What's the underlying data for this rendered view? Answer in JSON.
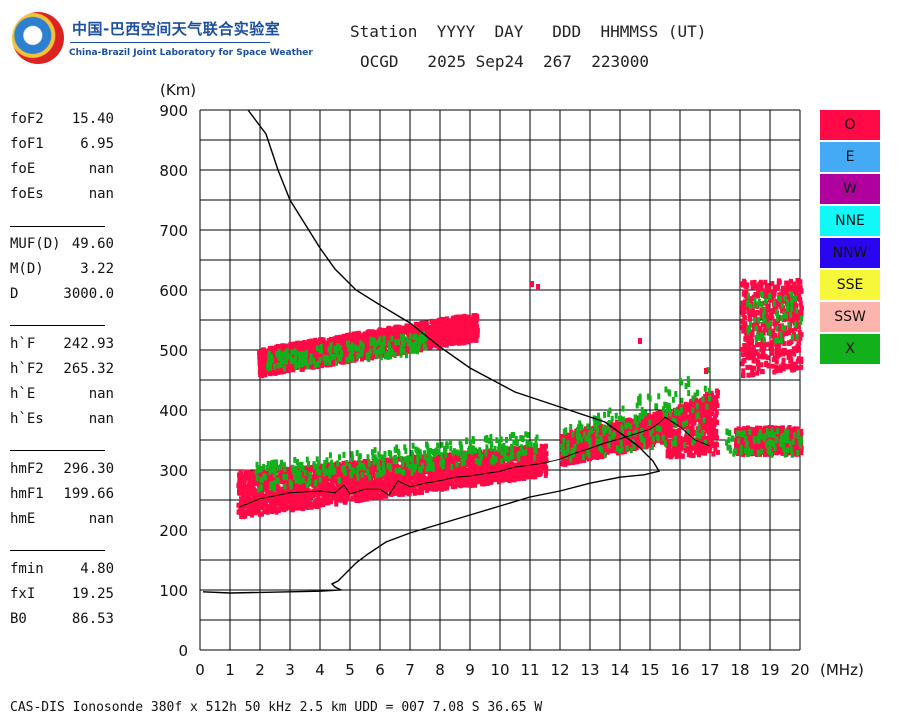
{
  "logo": {
    "cn": "中国-巴西空间天气联合实验室",
    "en": "China-Brazil Joint Laboratory for Space Weather"
  },
  "header": {
    "line1": "Station  YYYY  DAY   DDD  HHMMSS (UT)",
    "line2": "OCGD   2025 Sep24  267  223000"
  },
  "params": [
    {
      "label": "foF2",
      "value": "15.40"
    },
    {
      "label": "foF1",
      "value": "6.95"
    },
    {
      "label": "foE",
      "value": "nan"
    },
    {
      "label": "foEs",
      "value": "nan"
    },
    {
      "label": "MUF(D)",
      "value": "49.60"
    },
    {
      "label": "M(D)",
      "value": "3.22"
    },
    {
      "label": "D",
      "value": "3000.0"
    },
    {
      "label": "h`F",
      "value": "242.93"
    },
    {
      "label": "h`F2",
      "value": "265.32"
    },
    {
      "label": "h`E",
      "value": "nan"
    },
    {
      "label": "h`Es",
      "value": "nan"
    },
    {
      "label": "hmF2",
      "value": "296.30"
    },
    {
      "label": "hmF1",
      "value": "199.66"
    },
    {
      "label": "hmE",
      "value": "nan"
    },
    {
      "label": "fmin",
      "value": "4.80"
    },
    {
      "label": "fxI",
      "value": "19.25"
    },
    {
      "label": "B0",
      "value": "86.53"
    }
  ],
  "legend": [
    {
      "label": "O",
      "color": "#ff0a46"
    },
    {
      "label": "E",
      "color": "#45aaf5"
    },
    {
      "label": "W",
      "color": "#b0009e"
    },
    {
      "label": "NNE",
      "color": "#12f7f7"
    },
    {
      "label": "NNW",
      "color": "#2a06f0"
    },
    {
      "label": "SSE",
      "color": "#f7f73a"
    },
    {
      "label": "SSW",
      "color": "#fbb5ac"
    },
    {
      "label": "X",
      "color": "#12b01a"
    }
  ],
  "footer": "CAS-DIS Ionosonde 380f x 512h 50 kHz 2.5 km UDD = 007 7.08 S 36.65 W",
  "chart_data": {
    "type": "scatter",
    "xlabel": "(MHz)",
    "ylabel": "(Km)",
    "xlim": [
      0,
      20
    ],
    "ylim": [
      0,
      900
    ],
    "x_ticks": [
      "0",
      "1",
      "2",
      "3",
      "4",
      "5",
      "6",
      "7",
      "8",
      "9",
      "10",
      "11",
      "12",
      "13",
      "14",
      "15",
      "16",
      "17",
      "18",
      "19",
      "20"
    ],
    "y_ticks": [
      "0",
      "100",
      "200",
      "300",
      "400",
      "500",
      "600",
      "700",
      "800",
      "900"
    ],
    "grid": true,
    "legend_position": "right",
    "profile_line": [
      [
        0.1,
        97
      ],
      [
        1,
        95
      ],
      [
        2,
        96
      ],
      [
        3,
        97
      ],
      [
        4,
        98
      ],
      [
        4.7,
        100
      ],
      [
        4.5,
        105
      ],
      [
        4.4,
        110
      ],
      [
        4.6,
        115
      ],
      [
        4.8,
        125
      ],
      [
        5.2,
        145
      ],
      [
        5.6,
        160
      ],
      [
        6.2,
        180
      ],
      [
        7,
        195
      ],
      [
        8,
        210
      ],
      [
        9,
        225
      ],
      [
        10,
        240
      ],
      [
        11,
        255
      ],
      [
        12,
        265
      ],
      [
        13,
        278
      ],
      [
        14,
        288
      ],
      [
        14.8,
        292
      ],
      [
        15.3,
        298
      ],
      [
        15.1,
        315
      ],
      [
        14.6,
        340
      ],
      [
        13.5,
        380
      ],
      [
        12,
        405
      ],
      [
        10.5,
        430
      ],
      [
        9,
        470
      ],
      [
        8,
        505
      ],
      [
        7,
        545
      ],
      [
        6,
        575
      ],
      [
        5.2,
        600
      ],
      [
        4.5,
        635
      ],
      [
        4,
        670
      ],
      [
        3.5,
        710
      ],
      [
        3,
        750
      ],
      [
        2.6,
        800
      ],
      [
        2.2,
        860
      ],
      [
        1.6,
        900
      ]
    ],
    "trace_line": [
      [
        1.3,
        238
      ],
      [
        2,
        252
      ],
      [
        3,
        262
      ],
      [
        4,
        265
      ],
      [
        4.5,
        262
      ],
      [
        4.8,
        275
      ],
      [
        5,
        260
      ],
      [
        5.5,
        268
      ],
      [
        6,
        268
      ],
      [
        6.3,
        258
      ],
      [
        6.6,
        282
      ],
      [
        7,
        272
      ],
      [
        7.5,
        278
      ],
      [
        8,
        282
      ],
      [
        8.5,
        288
      ],
      [
        9,
        290
      ],
      [
        9.5,
        294
      ],
      [
        10,
        298
      ],
      [
        10.5,
        305
      ],
      [
        11,
        308
      ],
      [
        11.5,
        312
      ],
      [
        12,
        318
      ],
      [
        12.5,
        328
      ],
      [
        13,
        336
      ],
      [
        13.5,
        345
      ],
      [
        14,
        352
      ],
      [
        14.5,
        360
      ],
      [
        15,
        368
      ],
      [
        15.3,
        378
      ],
      [
        15.5,
        388
      ],
      [
        16,
        372
      ],
      [
        16.5,
        350
      ],
      [
        17,
        340
      ]
    ],
    "o_bands": [
      {
        "x0": 1.2,
        "x1": 11.5,
        "y0a": 225,
        "y0b": 295,
        "y1a": 300,
        "y1b": 345
      },
      {
        "x0": 12,
        "x1": 15.5,
        "y0a": 312,
        "y0b": 350,
        "y1a": 365,
        "y1b": 402
      },
      {
        "x0": 15.5,
        "x1": 17.2,
        "y0a": 325,
        "y0b": 330,
        "y1a": 400,
        "y1b": 440
      },
      {
        "x0": 17.8,
        "x1": 20,
        "y0a": 330,
        "y0b": 330,
        "y1a": 375,
        "y1b": 375
      },
      {
        "x0": 1.9,
        "x1": 9.2,
        "y0a": 460,
        "y0b": 520,
        "y1a": 505,
        "y1b": 565
      },
      {
        "x0": 18,
        "x1": 20,
        "y0a": 460,
        "y0b": 470,
        "y1a": 620,
        "y1b": 620
      }
    ],
    "x_bands": [
      {
        "x0": 1.8,
        "x1": 11.2,
        "y0a": 270,
        "y0b": 325,
        "y1a": 315,
        "y1b": 370
      },
      {
        "x0": 12,
        "x1": 17,
        "y0a": 320,
        "y0b": 350,
        "y1a": 370,
        "y1b": 480
      },
      {
        "x0": 17.5,
        "x1": 20,
        "y0a": 330,
        "y0b": 330,
        "y1a": 370,
        "y1b": 370
      },
      {
        "x0": 2.2,
        "x1": 7.5,
        "y0a": 470,
        "y0b": 500,
        "y1a": 500,
        "y1b": 535
      },
      {
        "x0": 18.2,
        "x1": 20,
        "y0a": 520,
        "y0b": 520,
        "y1a": 600,
        "y1b": 600
      }
    ]
  }
}
